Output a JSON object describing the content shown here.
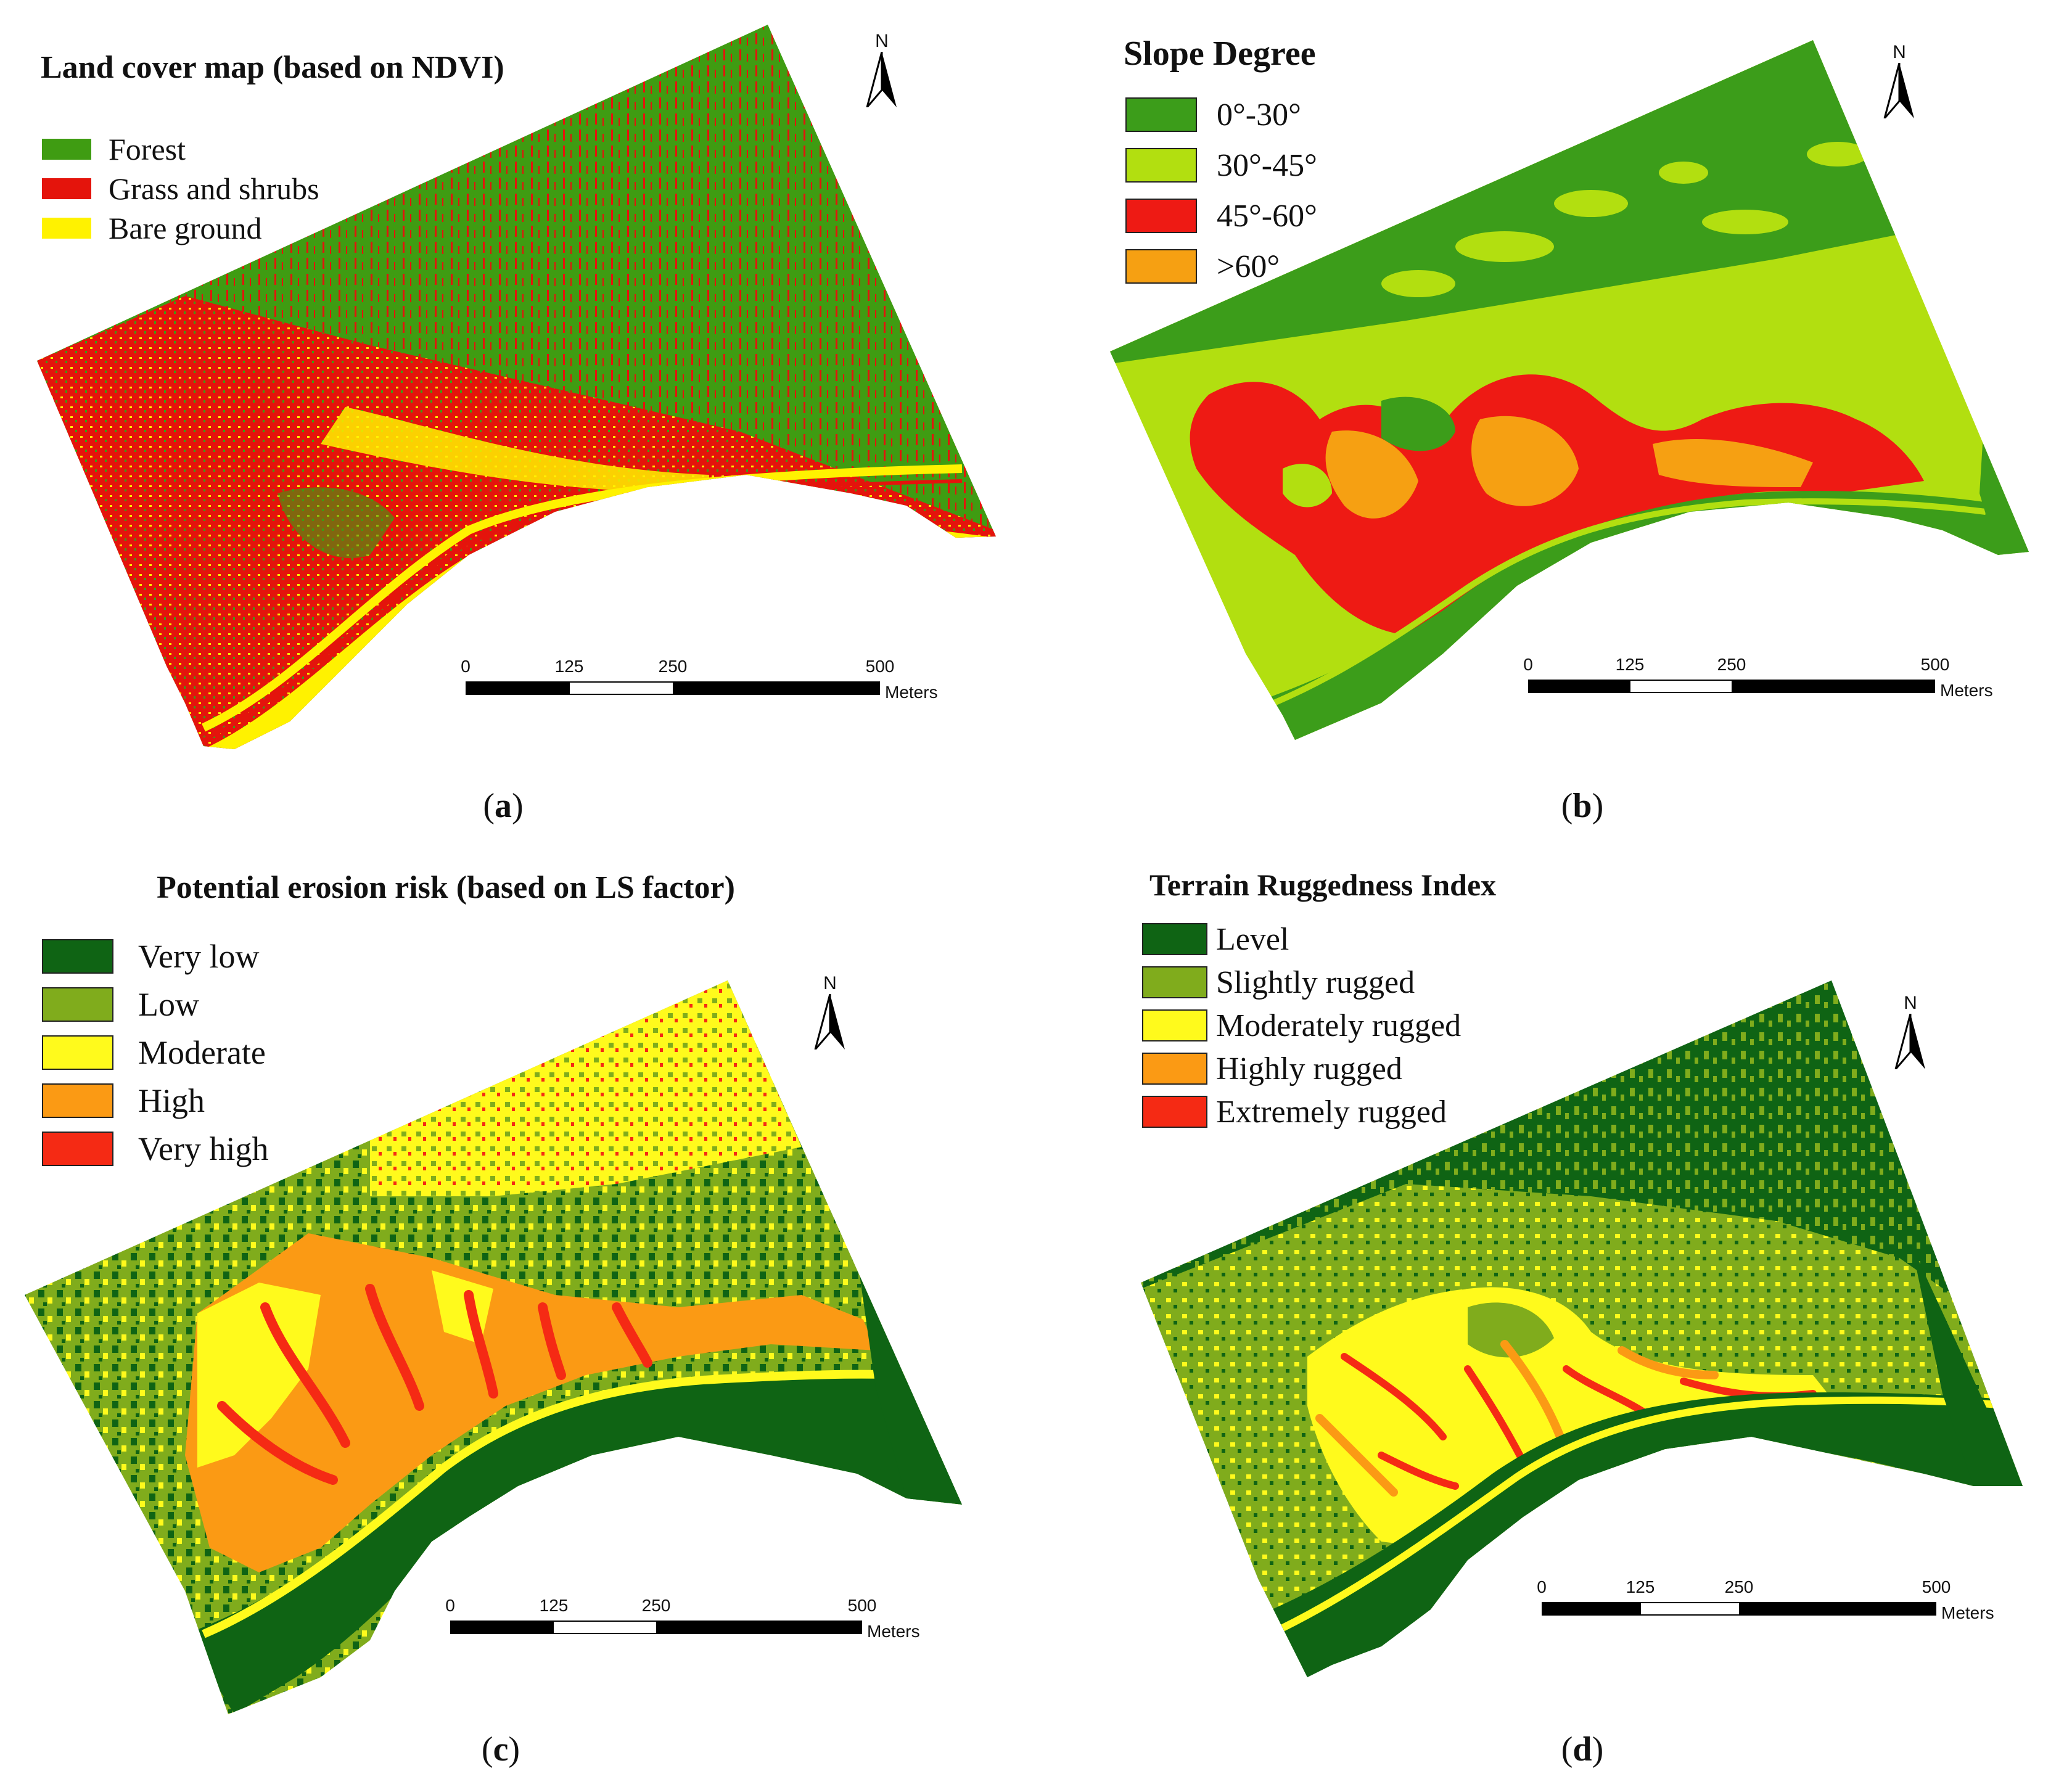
{
  "panels": {
    "a": {
      "title": "Land cover map (based on NDVI)",
      "caption_letter": "a",
      "legend": [
        {
          "label": "Forest",
          "color": "#3f9c12"
        },
        {
          "label": "Grass and shrubs",
          "color": "#e4140c"
        },
        {
          "label": "Bare ground",
          "color": "#fff200"
        }
      ],
      "north": "N",
      "scale": {
        "ticks": [
          "0",
          "125",
          "250",
          "500"
        ],
        "unit": "Meters"
      }
    },
    "b": {
      "title": "Slope Degree",
      "caption_letter": "b",
      "legend": [
        {
          "label": "0°-30°",
          "color": "#3c9d1a"
        },
        {
          "label": "30°-45°",
          "color": "#b2df10"
        },
        {
          "label": "45°-60°",
          "color": "#ee1a14"
        },
        {
          "label": ">60°",
          "color": "#f6a012"
        }
      ],
      "north": "N",
      "scale": {
        "ticks": [
          "0",
          "125",
          "250",
          "500"
        ],
        "unit": "Meters"
      }
    },
    "c": {
      "title": "Potential erosion risk (based on LS factor)",
      "caption_letter": "c",
      "legend": [
        {
          "label": "Very low",
          "color": "#0f6414"
        },
        {
          "label": "Low",
          "color": "#80ac1c"
        },
        {
          "label": "Moderate",
          "color": "#fffa1c"
        },
        {
          "label": "High",
          "color": "#fb9a14"
        },
        {
          "label": "Very high",
          "color": "#f52a14"
        }
      ],
      "north": "N",
      "scale": {
        "ticks": [
          "0",
          "125",
          "250",
          "500"
        ],
        "unit": "Meters"
      }
    },
    "d": {
      "title": "Terrain Ruggedness Index",
      "caption_letter": "d",
      "legend": [
        {
          "label": "Level",
          "color": "#0f6414"
        },
        {
          "label": "Slightly rugged",
          "color": "#80ac1c"
        },
        {
          "label": "Moderately rugged",
          "color": "#fffa1c"
        },
        {
          "label": "Highly rugged",
          "color": "#fb9a14"
        },
        {
          "label": "Extremely rugged",
          "color": "#f52a14"
        }
      ],
      "north": "N",
      "scale": {
        "ticks": [
          "0",
          "125",
          "250",
          "500"
        ],
        "unit": "Meters"
      }
    }
  }
}
